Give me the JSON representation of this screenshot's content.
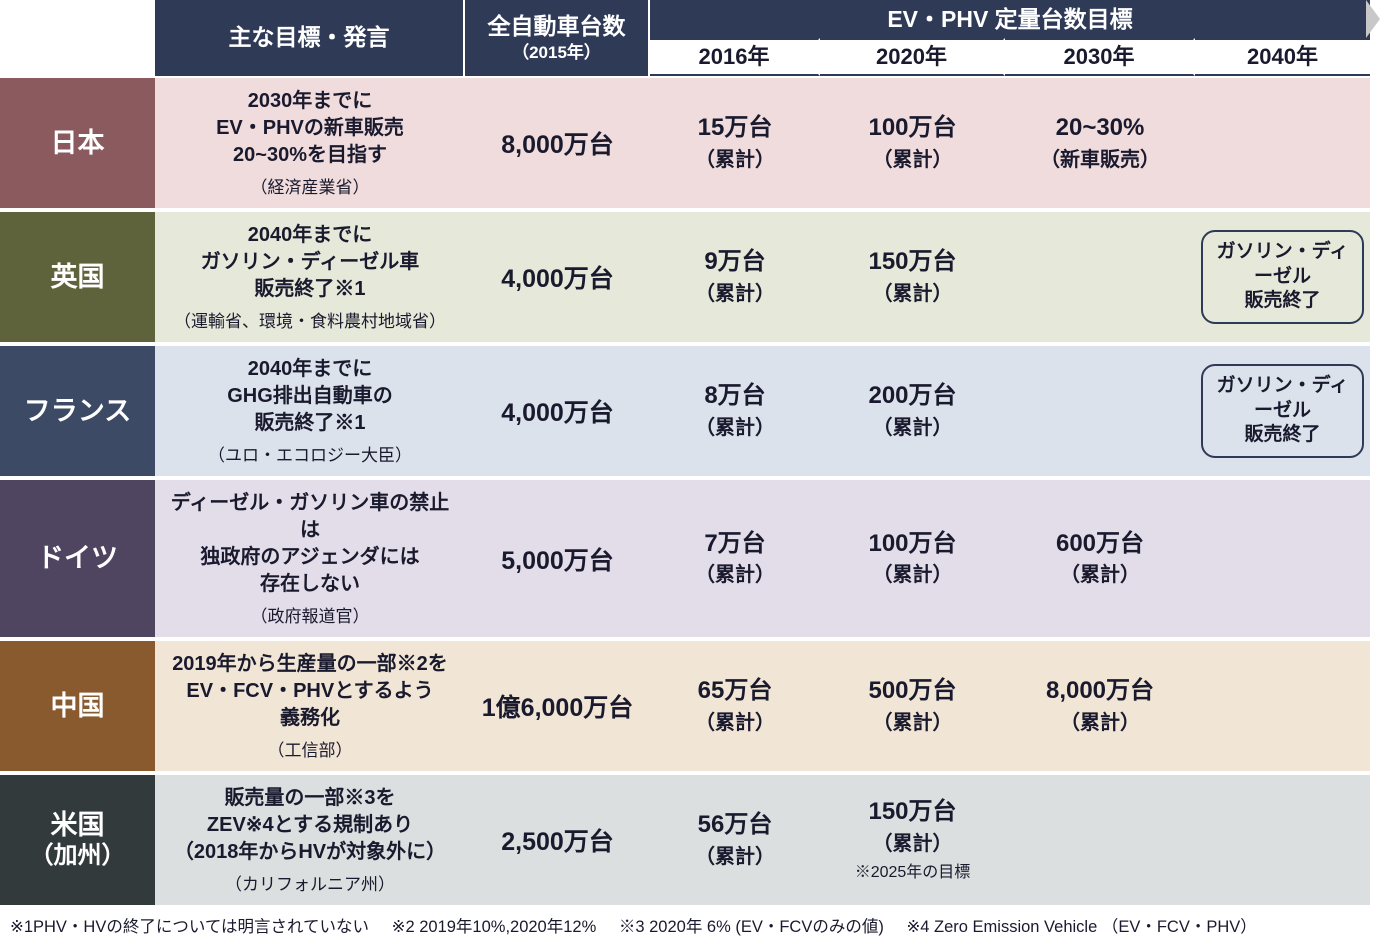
{
  "header": {
    "col_goals": "主な目標・発言",
    "col_total_main": "全自動車台数",
    "col_total_sub": "（2015年）",
    "col_evphv": "EV・PHV 定量台数目標",
    "years": [
      "2016年",
      "2020年",
      "2030年",
      "2040年"
    ]
  },
  "colors": {
    "header_bg": "#2f3a57",
    "header_fg": "#ffffff"
  },
  "rows": [
    {
      "country": "日本",
      "country_sub": "",
      "country_bg": "#8b5a5f",
      "row_bg": "#f0dcdc",
      "goal_lines": [
        "2030年までに",
        "EV・PHVの新車販売",
        "20~30%を目指す"
      ],
      "goal_source": "（経済産業省）",
      "total": "8,000万台",
      "t2016": {
        "v": "15万台",
        "s": "（累計）"
      },
      "t2020": {
        "v": "100万台",
        "s": "（累計）"
      },
      "t2030": {
        "v": "20~30%",
        "s": "（新車販売）"
      },
      "t2040": null
    },
    {
      "country": "英国",
      "country_sub": "",
      "country_bg": "#5e633b",
      "row_bg": "#e6e9d9",
      "goal_lines": [
        "2040年までに",
        "ガソリン・ディーゼル車",
        "販売終了※1"
      ],
      "goal_source": "（運輸省、環境・食料農村地域省）",
      "total": "4,000万台",
      "t2016": {
        "v": "9万台",
        "s": "（累計）"
      },
      "t2020": {
        "v": "150万台",
        "s": "（累計）"
      },
      "t2030": null,
      "t2040": {
        "bracket": true,
        "lines": [
          "ガソリン・ディーゼル",
          "販売終了"
        ]
      }
    },
    {
      "country": "フランス",
      "country_sub": "",
      "country_bg": "#3c4a66",
      "row_bg": "#dbe2ec",
      "goal_lines": [
        "2040年までに",
        "GHG排出自動車の",
        "販売終了※1"
      ],
      "goal_source": "（ユロ・エコロジー大臣）",
      "total": "4,000万台",
      "t2016": {
        "v": "8万台",
        "s": "（累計）"
      },
      "t2020": {
        "v": "200万台",
        "s": "（累計）"
      },
      "t2030": null,
      "t2040": {
        "bracket": true,
        "lines": [
          "ガソリン・ディーゼル",
          "販売終了"
        ]
      }
    },
    {
      "country": "ドイツ",
      "country_sub": "",
      "country_bg": "#4f4560",
      "row_bg": "#e3dde9",
      "goal_lines": [
        "ディーゼル・ガソリン車の禁止は",
        "独政府のアジェンダには",
        "存在しない"
      ],
      "goal_source": "（政府報道官）",
      "total": "5,000万台",
      "t2016": {
        "v": "7万台",
        "s": "（累計）"
      },
      "t2020": {
        "v": "100万台",
        "s": "（累計）"
      },
      "t2030": {
        "v": "600万台",
        "s": "（累計）"
      },
      "t2040": null
    },
    {
      "country": "中国",
      "country_sub": "",
      "country_bg": "#8a5a2f",
      "row_bg": "#f1e5d5",
      "goal_lines": [
        "2019年から生産量の一部※2を",
        "EV・FCV・PHVとするよう",
        "義務化"
      ],
      "goal_source": "（工信部）",
      "total": "1億6,000万台",
      "t2016": {
        "v": "65万台",
        "s": "（累計）"
      },
      "t2020": {
        "v": "500万台",
        "s": "（累計）"
      },
      "t2030": {
        "v": "8,000万台",
        "s": "（累計）"
      },
      "t2040": null
    },
    {
      "country": "米国",
      "country_sub": "（加州）",
      "country_bg": "#323a3c",
      "row_bg": "#dcdfe0",
      "goal_lines": [
        "販売量の一部※3を",
        "ZEV※4とする規制あり",
        "（2018年からHVが対象外に）"
      ],
      "goal_source": "（カリフォルニア州）",
      "total": "2,500万台",
      "t2016": {
        "v": "56万台",
        "s": "（累計）"
      },
      "t2020": {
        "v": "150万台",
        "s": "（累計）",
        "note": "※2025年の目標"
      },
      "t2030": null,
      "t2040": null
    }
  ],
  "footnotes": [
    "※1PHV・HVの終了については明言されていない",
    "※2 2019年10%,2020年12%",
    "※3 2020年 6% (EV・FCVのみの値)",
    "※4 Zero Emission Vehicle （EV・FCV・PHV）"
  ]
}
